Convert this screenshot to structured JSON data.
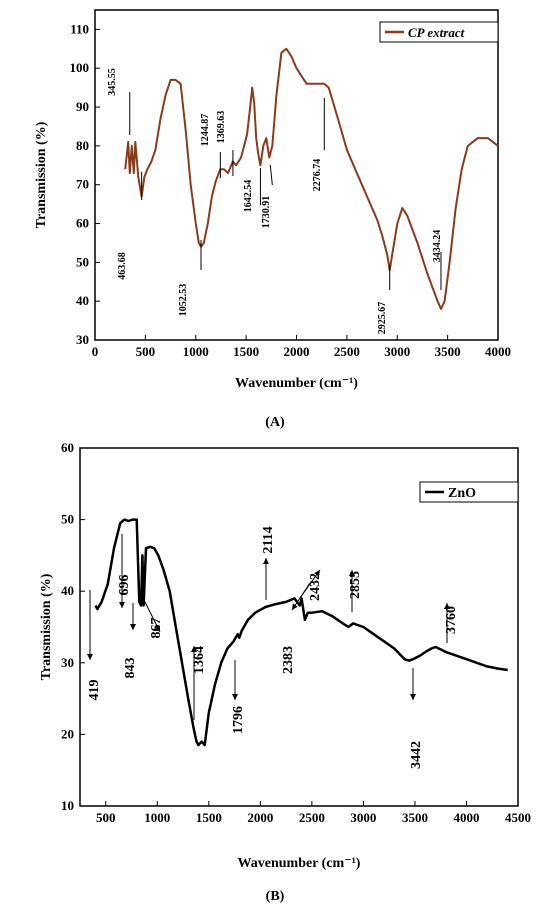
{
  "colors": {
    "series_a": "#8b3a1a",
    "series_b": "#000000",
    "axis": "#000000"
  },
  "chart_data": [
    {
      "type": "line",
      "panel_label": "(A)",
      "xlabel": "Wavenumber (cm⁻¹)",
      "ylabel": "Transmission (%)",
      "xlim": [
        0,
        4000
      ],
      "ylim": [
        30,
        115
      ],
      "xticks": [
        0,
        500,
        1000,
        1500,
        2000,
        2500,
        3000,
        3500,
        4000
      ],
      "yticks": [
        30,
        40,
        50,
        60,
        70,
        80,
        90,
        100,
        110
      ],
      "legend": "top-right",
      "series": [
        {
          "name": "CP extract",
          "x": [
            300,
            330,
            345,
            365,
            385,
            400,
            430,
            463,
            490,
            520,
            560,
            600,
            650,
            700,
            750,
            800,
            850,
            900,
            950,
            1000,
            1030,
            1052,
            1080,
            1120,
            1160,
            1200,
            1244,
            1280,
            1320,
            1369,
            1400,
            1450,
            1480,
            1510,
            1540,
            1560,
            1580,
            1600,
            1620,
            1642,
            1670,
            1700,
            1730,
            1760,
            1800,
            1850,
            1900,
            1950,
            2000,
            2100,
            2200,
            2276,
            2320,
            2400,
            2500,
            2600,
            2700,
            2800,
            2850,
            2900,
            2925,
            2950,
            3000,
            3050,
            3100,
            3200,
            3300,
            3400,
            3434,
            3470,
            3520,
            3580,
            3640,
            3700,
            3800,
            3900,
            4000
          ],
          "y": [
            74,
            81,
            73,
            80,
            73,
            81,
            72,
            67,
            72,
            74,
            76,
            79,
            87,
            93,
            97,
            97,
            96,
            84,
            70,
            60,
            55,
            54,
            55,
            60,
            67,
            71,
            74,
            74,
            73,
            76,
            75,
            77,
            80,
            83,
            90,
            95,
            91,
            82,
            78,
            75,
            80,
            82,
            77,
            80,
            93,
            104,
            105,
            103,
            100,
            96,
            96,
            96,
            95,
            88,
            79,
            73,
            67,
            61,
            57,
            52,
            48,
            52,
            60,
            64,
            62,
            55,
            47,
            40,
            38,
            40,
            50,
            64,
            74,
            80,
            82,
            82,
            80
          ]
        }
      ],
      "annotations": [
        "345.55",
        "463.68",
        "1052.53",
        "1244.87",
        "1369.63",
        "1642.54",
        "1730.91",
        "2276.74",
        "2925.67",
        "3434.24"
      ]
    },
    {
      "type": "line",
      "panel_label": "(B)",
      "xlabel": "Wavenumber (cm⁻¹)",
      "ylabel": "Transmission (%)",
      "xlim": [
        250,
        4500
      ],
      "ylim": [
        10,
        60
      ],
      "xticks": [
        500,
        1000,
        1500,
        2000,
        2500,
        3000,
        3500,
        4000,
        4500
      ],
      "yticks": [
        10,
        20,
        30,
        40,
        50,
        60
      ],
      "legend": "top-right",
      "series": [
        {
          "name": "ZnO",
          "x": [
            400,
            419,
            460,
            520,
            580,
            640,
            680,
            720,
            760,
            800,
            825,
            843,
            855,
            867,
            890,
            930,
            970,
            1010,
            1060,
            1120,
            1180,
            1240,
            1300,
            1350,
            1380,
            1400,
            1430,
            1460,
            1500,
            1560,
            1620,
            1680,
            1740,
            1780,
            1796,
            1820,
            1880,
            1950,
            2050,
            2150,
            2250,
            2330,
            2383,
            2400,
            2432,
            2460,
            2500,
            2600,
            2700,
            2800,
            2855,
            2900,
            3000,
            3100,
            3200,
            3300,
            3400,
            3442,
            3480,
            3550,
            3600,
            3660,
            3700,
            3760,
            3800,
            3900,
            4000,
            4100,
            4200,
            4300,
            4400
          ],
          "y": [
            38,
            37.5,
            38.5,
            41,
            46,
            49.5,
            50,
            49.8,
            50,
            50,
            38.5,
            38,
            45,
            38,
            46,
            46.2,
            46,
            45,
            43,
            40,
            35,
            30,
            25,
            21,
            19,
            18.5,
            19,
            18.5,
            23,
            27,
            30,
            32,
            33,
            34,
            33.5,
            34.5,
            36,
            37,
            37.8,
            38.2,
            38.5,
            39,
            38,
            39,
            36,
            37,
            37,
            37.2,
            36.5,
            35.5,
            35,
            35.5,
            35,
            34,
            33,
            32,
            30.5,
            30.3,
            30.5,
            31,
            31.5,
            32,
            32.2,
            31.8,
            31.5,
            31,
            30.5,
            30,
            29.5,
            29.2,
            29
          ]
        }
      ],
      "annotations": [
        "419",
        "696",
        "843",
        "867",
        "1364",
        "1796",
        "2114",
        "2383",
        "2432",
        "2855",
        "3442",
        "3760"
      ]
    }
  ]
}
